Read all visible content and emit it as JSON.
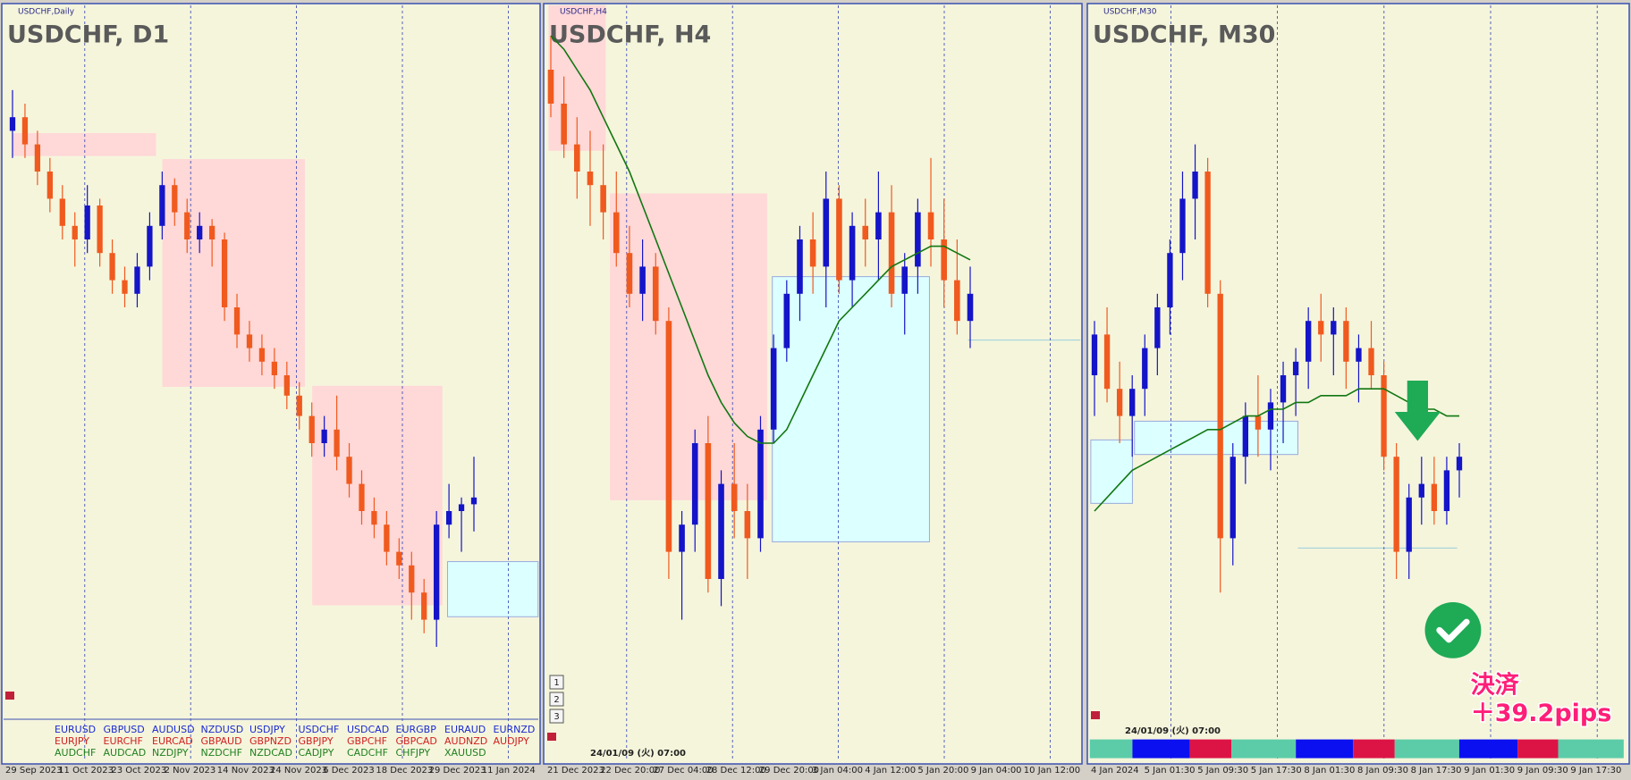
{
  "panels": [
    {
      "label": "USDCHF,Daily",
      "title": "USDCHF, D1",
      "dates": [
        "29 Sep 2023",
        "11 Oct 2023",
        "23 Oct 2023",
        "2 Nov 2023",
        "14 Nov 2023",
        "24 Nov 2023",
        "6 Dec 2023",
        "18 Dec 2023",
        "29 Dec 2023",
        "11 Jan 2024"
      ],
      "candles": [
        [
          86,
          92,
          82,
          88
        ],
        [
          88,
          90,
          82,
          84
        ],
        [
          84,
          86,
          78,
          80
        ],
        [
          80,
          82,
          74,
          76
        ],
        [
          76,
          78,
          70,
          72
        ],
        [
          72,
          74,
          66,
          70
        ],
        [
          70,
          78,
          68,
          75
        ],
        [
          75,
          76,
          66,
          68
        ],
        [
          68,
          70,
          62,
          64
        ],
        [
          64,
          66,
          60,
          62
        ],
        [
          62,
          68,
          60,
          66
        ],
        [
          66,
          74,
          64,
          72
        ],
        [
          72,
          80,
          70,
          78
        ],
        [
          78,
          79,
          72,
          74
        ],
        [
          74,
          76,
          68,
          70
        ],
        [
          70,
          74,
          68,
          72
        ],
        [
          72,
          73,
          66,
          70
        ],
        [
          70,
          71,
          58,
          60
        ],
        [
          60,
          62,
          54,
          56
        ],
        [
          56,
          58,
          52,
          54
        ],
        [
          54,
          56,
          50,
          52
        ],
        [
          52,
          54,
          48,
          50
        ],
        [
          50,
          52,
          45,
          47
        ],
        [
          47,
          49,
          42,
          44
        ],
        [
          44,
          46,
          38,
          40
        ],
        [
          40,
          44,
          38,
          42
        ],
        [
          42,
          47,
          36,
          38
        ],
        [
          38,
          40,
          32,
          34
        ],
        [
          34,
          36,
          28,
          30
        ],
        [
          30,
          32,
          26,
          28
        ],
        [
          28,
          30,
          22,
          24
        ],
        [
          24,
          26,
          20,
          22
        ],
        [
          22,
          24,
          14,
          18
        ],
        [
          18,
          20,
          12,
          14
        ],
        [
          14,
          30,
          10,
          28
        ],
        [
          28,
          34,
          26,
          30
        ],
        [
          30,
          32,
          24,
          31
        ],
        [
          31,
          38,
          27,
          32
        ]
      ]
    },
    {
      "label": "USDCHF,H4",
      "title": "USDCHF, H4",
      "timestamp": "24/01/09 (火) 07:00",
      "dates": [
        "21 Dec 2023",
        "22 Dec 20:00",
        "27 Dec 04:00",
        "28 Dec 12:00",
        "29 Dec 20:00",
        "3 Jan 04:00",
        "4 Jan 12:00",
        "5 Jan 20:00",
        "9 Jan 04:00",
        "10 Jan 12:00"
      ],
      "candles": [
        [
          95,
          100,
          88,
          90
        ],
        [
          90,
          94,
          82,
          84
        ],
        [
          84,
          88,
          76,
          80
        ],
        [
          80,
          86,
          72,
          78
        ],
        [
          78,
          84,
          70,
          74
        ],
        [
          74,
          80,
          66,
          68
        ],
        [
          68,
          72,
          60,
          62
        ],
        [
          62,
          70,
          58,
          66
        ],
        [
          66,
          68,
          56,
          58
        ],
        [
          58,
          60,
          20,
          24
        ],
        [
          24,
          30,
          14,
          28
        ],
        [
          28,
          42,
          24,
          40
        ],
        [
          40,
          44,
          18,
          20
        ],
        [
          20,
          36,
          16,
          34
        ],
        [
          34,
          40,
          26,
          30
        ],
        [
          30,
          34,
          20,
          26
        ],
        [
          26,
          44,
          24,
          42
        ],
        [
          42,
          56,
          40,
          54
        ],
        [
          54,
          64,
          52,
          62
        ],
        [
          62,
          72,
          58,
          70
        ],
        [
          70,
          74,
          62,
          66
        ],
        [
          66,
          80,
          60,
          76
        ],
        [
          76,
          78,
          62,
          64
        ],
        [
          64,
          74,
          60,
          72
        ],
        [
          72,
          76,
          66,
          70
        ],
        [
          70,
          80,
          64,
          74
        ],
        [
          74,
          78,
          60,
          62
        ],
        [
          62,
          68,
          56,
          66
        ],
        [
          66,
          76,
          62,
          74
        ],
        [
          74,
          82,
          66,
          70
        ],
        [
          70,
          76,
          60,
          64
        ],
        [
          64,
          70,
          56,
          58
        ],
        [
          58,
          66,
          54,
          62
        ]
      ],
      "ma": [
        100,
        98,
        95,
        92,
        88,
        84,
        80,
        75,
        70,
        65,
        60,
        55,
        50,
        46,
        43,
        41,
        40,
        40,
        42,
        46,
        50,
        54,
        58,
        60,
        62,
        64,
        66,
        67,
        68,
        69,
        69,
        68,
        67
      ]
    },
    {
      "label": "USDCHF,M30",
      "title": "USDCHF, M30",
      "timestamp": "24/01/09 (火) 07:00",
      "dates": [
        "4 Jan 2024",
        "5 Jan 01:30",
        "5 Jan 09:30",
        "5 Jan 17:30",
        "8 Jan 01:30",
        "8 Jan 09:30",
        "8 Jan 17:30",
        "9 Jan 01:30",
        "9 Jan 09:30",
        "9 Jan 17:30"
      ],
      "candles": [
        [
          50,
          58,
          44,
          56
        ],
        [
          56,
          60,
          46,
          48
        ],
        [
          48,
          52,
          40,
          44
        ],
        [
          44,
          50,
          38,
          48
        ],
        [
          48,
          56,
          44,
          54
        ],
        [
          54,
          62,
          50,
          60
        ],
        [
          60,
          70,
          56,
          68
        ],
        [
          68,
          80,
          64,
          76
        ],
        [
          76,
          84,
          70,
          80
        ],
        [
          80,
          82,
          60,
          62
        ],
        [
          62,
          64,
          18,
          26
        ],
        [
          26,
          40,
          22,
          38
        ],
        [
          38,
          46,
          34,
          44
        ],
        [
          44,
          50,
          38,
          42
        ],
        [
          42,
          48,
          36,
          46
        ],
        [
          46,
          52,
          40,
          50
        ],
        [
          50,
          54,
          44,
          52
        ],
        [
          52,
          60,
          48,
          58
        ],
        [
          58,
          62,
          52,
          56
        ],
        [
          56,
          60,
          50,
          58
        ],
        [
          58,
          60,
          48,
          52
        ],
        [
          52,
          56,
          46,
          54
        ],
        [
          54,
          58,
          48,
          50
        ],
        [
          50,
          52,
          36,
          38
        ],
        [
          38,
          40,
          20,
          24
        ],
        [
          24,
          34,
          20,
          32
        ],
        [
          32,
          38,
          28,
          34
        ],
        [
          34,
          38,
          28,
          30
        ],
        [
          30,
          38,
          28,
          36
        ],
        [
          36,
          40,
          32,
          38
        ]
      ],
      "ma": [
        30,
        32,
        34,
        36,
        37,
        38,
        39,
        40,
        41,
        42,
        42,
        43,
        44,
        44,
        45,
        45,
        46,
        46,
        47,
        47,
        47,
        48,
        48,
        48,
        47,
        46,
        45,
        45,
        44,
        44
      ]
    }
  ],
  "symbols": [
    [
      "EURUSD",
      "GBPUSD",
      "AUDUSD",
      "NZDUSD",
      "USDJPY",
      "USDCHF",
      "USDCAD",
      "EURGBP",
      "EURAUD",
      "EURNZD"
    ],
    [
      "EURJPY",
      "EURCHF",
      "EURCAD",
      "GBPAUD",
      "GBPNZD",
      "GBPJPY",
      "GBPCHF",
      "GBPCAD",
      "AUDNZD",
      "AUDJPY"
    ],
    [
      "AUDCHF",
      "AUDCAD",
      "NZDJPY",
      "NZDCHF",
      "NZDCAD",
      "CADJPY",
      "CADCHF",
      "CHFJPY",
      "XAUUSD"
    ]
  ],
  "tabs": [
    "1",
    "2",
    "3"
  ],
  "annotation": {
    "line1": "決済",
    "line2": "＋39.2pips"
  }
}
